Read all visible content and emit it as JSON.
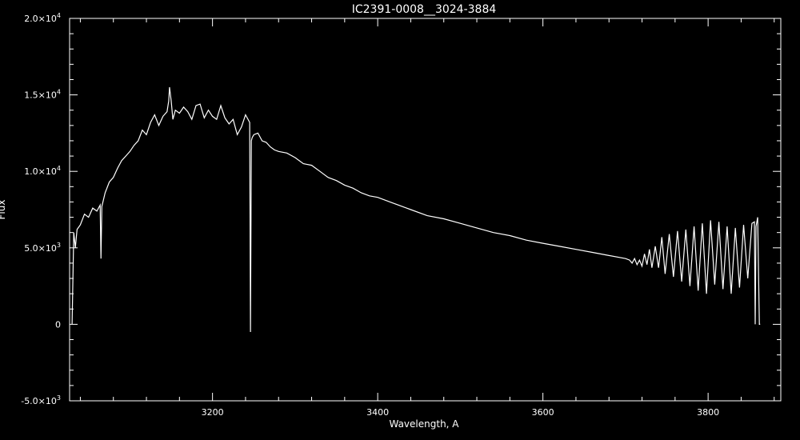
{
  "chart_data": {
    "type": "line",
    "title": "IC2391-0008__3024-3884",
    "xlabel": "Wavelength, A",
    "ylabel": "Flux",
    "xlim": [
      3027,
      3888
    ],
    "ylim": [
      -5000,
      20000
    ],
    "x_ticks": [
      3200,
      3400,
      3600,
      3800
    ],
    "x_tick_labels": [
      "3200",
      "3400",
      "3600",
      "3800"
    ],
    "y_ticks": [
      -5000,
      0,
      5000,
      10000,
      15000,
      20000
    ],
    "y_tick_labels": [
      {
        "mantissa": "-5.0×10",
        "exponent": "3"
      },
      {
        "mantissa": "0",
        "exponent": ""
      },
      {
        "mantissa": "5.0×10",
        "exponent": "3"
      },
      {
        "mantissa": "1.0×10",
        "exponent": "4"
      },
      {
        "mantissa": "1.5×10",
        "exponent": "4"
      },
      {
        "mantissa": "2.0×10",
        "exponent": "4"
      }
    ],
    "grid": false,
    "line_color": "#ffffff",
    "background": "#000000",
    "series": [
      {
        "x": [
          3030,
          3032,
          3034,
          3036,
          3040,
          3045,
          3050,
          3055,
          3060,
          3064,
          3065,
          3066,
          3070,
          3075,
          3080,
          3085,
          3090,
          3095,
          3100,
          3105,
          3110,
          3115,
          3120,
          3125,
          3130,
          3135,
          3140,
          3145,
          3147,
          3148,
          3150,
          3152,
          3155,
          3160,
          3165,
          3170,
          3175,
          3180,
          3185,
          3190,
          3195,
          3200,
          3205,
          3210,
          3215,
          3220,
          3225,
          3230,
          3235,
          3240,
          3245,
          3246,
          3247,
          3248,
          3250,
          3255,
          3260,
          3265,
          3270,
          3275,
          3280,
          3290,
          3300,
          3310,
          3320,
          3330,
          3340,
          3350,
          3360,
          3370,
          3380,
          3390,
          3400,
          3420,
          3440,
          3460,
          3480,
          3500,
          3520,
          3540,
          3560,
          3580,
          3600,
          3620,
          3640,
          3660,
          3680,
          3700,
          3705,
          3708,
          3711,
          3714,
          3717,
          3720,
          3723,
          3726,
          3729,
          3732,
          3736,
          3740,
          3744,
          3748,
          3753,
          3758,
          3763,
          3768,
          3773,
          3778,
          3783,
          3788,
          3793,
          3798,
          3803,
          3808,
          3813,
          3818,
          3823,
          3828,
          3833,
          3838,
          3843,
          3848,
          3853,
          3856,
          3857,
          3858,
          3860,
          3862,
          3863
        ],
        "y": [
          0,
          6000,
          5000,
          6200,
          6500,
          7200,
          7000,
          7600,
          7400,
          7800,
          4300,
          7700,
          8600,
          9300,
          9600,
          10200,
          10700,
          11000,
          11300,
          11700,
          12000,
          12700,
          12400,
          13200,
          13700,
          13000,
          13600,
          13900,
          14600,
          15500,
          14600,
          13400,
          14000,
          13800,
          14200,
          13900,
          13400,
          14300,
          14400,
          13500,
          14000,
          13600,
          13400,
          14300,
          13500,
          13100,
          13400,
          12400,
          12900,
          13700,
          13200,
          -500,
          12000,
          12200,
          12400,
          12500,
          12000,
          11900,
          11600,
          11400,
          11300,
          11200,
          10900,
          10500,
          10400,
          10000,
          9600,
          9400,
          9100,
          8900,
          8600,
          8400,
          8300,
          7900,
          7500,
          7100,
          6900,
          6600,
          6300,
          6000,
          5800,
          5500,
          5300,
          5100,
          4900,
          4700,
          4500,
          4300,
          4200,
          4000,
          4300,
          3900,
          4200,
          3800,
          4600,
          3900,
          4900,
          3700,
          5100,
          3700,
          5700,
          3300,
          5900,
          3100,
          6100,
          2800,
          6200,
          2500,
          6400,
          2200,
          6600,
          2000,
          6800,
          2600,
          6700,
          2300,
          6400,
          2000,
          6300,
          2400,
          6500,
          3000,
          6600,
          6700,
          0,
          6400,
          7000,
          0,
          0
        ]
      }
    ]
  }
}
